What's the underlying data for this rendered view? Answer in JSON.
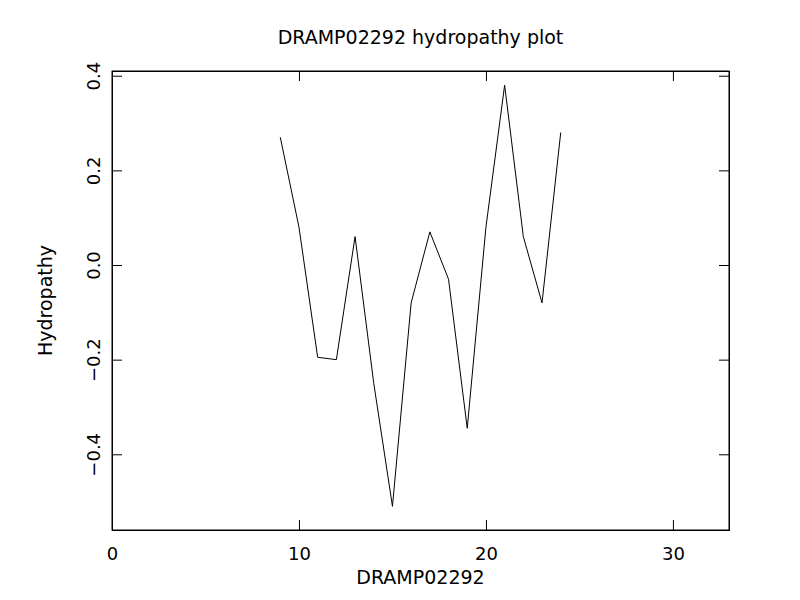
{
  "chart_data": {
    "type": "line",
    "title": "DRAMP02292 hydropathy plot",
    "x_label": "DRAMP02292",
    "y_label": "Hydropathy",
    "x": [
      9,
      10,
      11,
      12,
      13,
      14,
      15,
      16,
      17,
      18,
      19,
      20,
      21,
      22,
      23,
      24
    ],
    "values": [
      0.27,
      0.08,
      -0.195,
      -0.2,
      0.06,
      -0.25,
      -0.51,
      -0.08,
      0.07,
      -0.03,
      -0.345,
      0.08,
      0.38,
      0.06,
      -0.08,
      0.28
    ],
    "color": "#000000",
    "xlim": [
      0,
      33
    ],
    "xticks": [
      0,
      10,
      20,
      30
    ],
    "ylim": [
      -0.56,
      0.41
    ],
    "yticks": [
      {
        "value": -0.4,
        "label": "−0.4"
      },
      {
        "value": -0.2,
        "label": "−0.2"
      },
      {
        "value": 0,
        "label": "0.0"
      },
      0.2,
      0.4
    ],
    "grid": false
  }
}
